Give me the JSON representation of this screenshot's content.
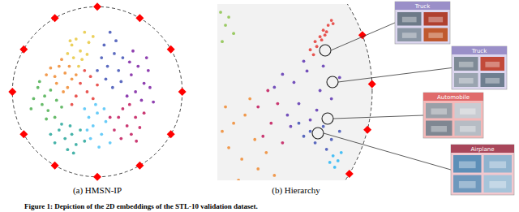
{
  "caption": "Figure 1: Depiction of the 2D embeddings of the STL-10 validation dataset.",
  "chart_data": [
    {
      "type": "scatter",
      "title": "(a) HMSN-IP",
      "xlim": [
        -1.06,
        1.06
      ],
      "ylim": [
        -1.06,
        1.06
      ],
      "tick_labels": false,
      "grid": false,
      "series": [
        {
          "color": "#e8c840",
          "marker": "circle",
          "x": [
            -0.3,
            -0.25,
            -0.2,
            -0.15,
            -0.28,
            -0.1,
            -0.35,
            -0.22,
            -0.05,
            -0.18,
            -0.32,
            -0.12
          ],
          "values": [
            0.55,
            0.62,
            0.48,
            0.7,
            0.4,
            0.58,
            0.45,
            0.3,
            0.65,
            0.38,
            0.6,
            0.44
          ]
        },
        {
          "color": "#f08a30",
          "marker": "circle",
          "x": [
            -0.45,
            -0.38,
            -0.5,
            -0.3,
            -0.42,
            -0.55,
            -0.35,
            -0.25,
            -0.48,
            -0.4,
            -0.6,
            -0.33
          ],
          "values": [
            0.3,
            0.22,
            0.18,
            0.15,
            0.38,
            0.28,
            0.05,
            0.2,
            0.1,
            0.0,
            0.2,
            0.3
          ]
        },
        {
          "color": "#4caf50",
          "marker": "circle",
          "x": [
            -0.7,
            -0.62,
            -0.55,
            -0.65,
            -0.48,
            -0.75,
            -0.58,
            -0.5,
            -0.68,
            -0.42,
            -0.6,
            -0.78
          ],
          "values": [
            0.05,
            -0.05,
            0.02,
            -0.15,
            -0.1,
            -0.08,
            -0.22,
            -0.3,
            0.12,
            -0.18,
            -0.32,
            -0.2
          ]
        },
        {
          "color": "#26a69a",
          "marker": "circle",
          "x": [
            -0.45,
            -0.38,
            -0.3,
            -0.5,
            -0.25,
            -0.35,
            -0.2,
            -0.42,
            -0.15,
            -0.28,
            -0.55,
            -0.32
          ],
          "values": [
            -0.45,
            -0.55,
            -0.5,
            -0.6,
            -0.62,
            -0.68,
            -0.45,
            -0.38,
            -0.58,
            -0.72,
            -0.5,
            -0.4
          ]
        },
        {
          "color": "#4fc3f7",
          "marker": "circle",
          "x": [
            -0.1,
            -0.05,
            0.0,
            -0.15,
            0.05,
            -0.08,
            0.1,
            -0.02,
            0.15,
            -0.12,
            0.08,
            0.02
          ],
          "values": [
            -0.3,
            -0.4,
            -0.25,
            -0.2,
            -0.5,
            -0.55,
            -0.35,
            -0.15,
            -0.6,
            -0.45,
            -0.2,
            -0.65
          ]
        },
        {
          "color": "#3f51b5",
          "marker": "circle",
          "x": [
            0.05,
            0.12,
            0.2,
            0.1,
            0.25,
            0.0,
            0.18,
            0.3,
            0.08,
            0.22,
            0.15,
            0.28
          ],
          "values": [
            0.4,
            0.3,
            0.45,
            0.15,
            0.25,
            0.25,
            0.05,
            0.4,
            0.55,
            0.6,
            0.7,
            0.12
          ]
        },
        {
          "color": "#7b1fa2",
          "marker": "circle",
          "x": [
            0.4,
            0.48,
            0.55,
            0.45,
            0.6,
            0.38,
            0.52,
            0.62,
            0.35,
            0.58,
            0.42,
            0.66
          ],
          "values": [
            0.2,
            0.3,
            0.1,
            0.0,
            0.25,
            0.35,
            -0.1,
            0.05,
            -0.05,
            0.4,
            0.48,
            -0.12
          ]
        },
        {
          "color": "#c2185b",
          "marker": "circle",
          "x": [
            0.25,
            0.35,
            0.3,
            0.45,
            0.2,
            0.4,
            0.5,
            0.28,
            0.55,
            0.38,
            0.15,
            0.46
          ],
          "values": [
            -0.3,
            -0.4,
            -0.2,
            -0.3,
            -0.45,
            -0.5,
            -0.42,
            -0.55,
            -0.25,
            -0.15,
            -0.3,
            -0.58
          ]
        },
        {
          "color": "#e53935",
          "marker": "circle",
          "x": [
            -0.2,
            -0.12,
            -0.08,
            -0.25,
            -0.15,
            0.0,
            -0.05,
            -0.3
          ],
          "values": [
            0.1,
            0.0,
            0.18,
            -0.05,
            0.25,
            0.08,
            -0.08,
            -0.15
          ]
        },
        {
          "color": "#ff0000",
          "marker": "diamond",
          "x": [
            1,
            0.866,
            0.5,
            0,
            -0.5,
            -0.866,
            -1,
            -0.866,
            -0.5,
            0,
            0.5,
            0.866
          ],
          "values": [
            0,
            0.5,
            0.866,
            1,
            0.866,
            0.5,
            0,
            -0.5,
            -0.866,
            -1,
            -0.866,
            -0.5
          ]
        }
      ]
    },
    {
      "type": "scatter",
      "title": "(b) Hierarchy",
      "xlim": [
        0.05,
        1.05
      ],
      "ylim": [
        -0.55,
        0.53
      ],
      "tick_labels": false,
      "grid": false,
      "annotations": [
        "Truck",
        "Truck",
        "Automobile",
        "Airplane"
      ],
      "series": [
        {
          "color": "#e53935",
          "marker": "circle",
          "x": [
            0.62,
            0.65,
            0.68,
            0.7,
            0.73,
            0.75,
            0.66,
            0.72,
            0.69,
            0.76,
            0.64,
            0.71
          ],
          "values": [
            0.25,
            0.3,
            0.33,
            0.37,
            0.4,
            0.43,
            0.27,
            0.36,
            0.31,
            0.41,
            0.22,
            0.34
          ]
        },
        {
          "color": "#5e35b1",
          "marker": "circle",
          "x": [
            0.45,
            0.52,
            0.6,
            0.68,
            0.75,
            0.55,
            0.48,
            0.62,
            0.7,
            0.4,
            0.58,
            0.8,
            0.66,
            0.5
          ],
          "values": [
            0.1,
            0.05,
            0.12,
            0.0,
            -0.05,
            -0.08,
            -0.15,
            -0.18,
            0.15,
            0.02,
            0.18,
            0.08,
            -0.12,
            -0.22
          ]
        },
        {
          "color": "#3f51b5",
          "marker": "circle",
          "x": [
            0.55,
            0.62,
            0.7,
            0.75,
            0.65,
            0.58,
            0.72,
            0.8
          ],
          "values": [
            -0.2,
            -0.25,
            -0.22,
            -0.3,
            -0.32,
            -0.28,
            -0.36,
            -0.25
          ]
        },
        {
          "color": "#29b6f6",
          "marker": "circle",
          "x": [
            0.76,
            0.79,
            0.74,
            0.81,
            0.77
          ],
          "values": [
            -0.4,
            -0.43,
            -0.44,
            -0.38,
            -0.47
          ]
        },
        {
          "color": "#f08a30",
          "marker": "circle",
          "x": [
            0.1,
            0.15,
            0.22,
            0.28,
            0.12,
            0.2,
            0.3,
            0.35,
            0.18,
            0.08,
            0.25,
            0.4
          ],
          "values": [
            -0.1,
            -0.2,
            -0.15,
            -0.3,
            -0.35,
            -0.42,
            -0.48,
            -0.38,
            -0.55,
            -0.25,
            -0.05,
            -0.52
          ]
        },
        {
          "color": "#c2185b",
          "marker": "circle",
          "x": [
            0.3,
            0.38,
            0.42,
            0.33,
            0.45,
            0.36
          ],
          "values": [
            -0.1,
            -0.2,
            -0.08,
            -0.28,
            -0.32,
            0.0
          ]
        },
        {
          "color": "#8bc34a",
          "marker": "circle",
          "x": [
            0.07,
            0.1,
            0.08,
            0.12,
            0.15
          ],
          "values": [
            0.48,
            0.4,
            0.3,
            0.45,
            0.35
          ]
        },
        {
          "color": "#ff0000",
          "marker": "diamond",
          "x": [
            0.94,
            0.999,
            0.971,
            0.86
          ],
          "values": [
            0.34,
            0.04,
            -0.24,
            -0.51
          ]
        }
      ]
    }
  ]
}
